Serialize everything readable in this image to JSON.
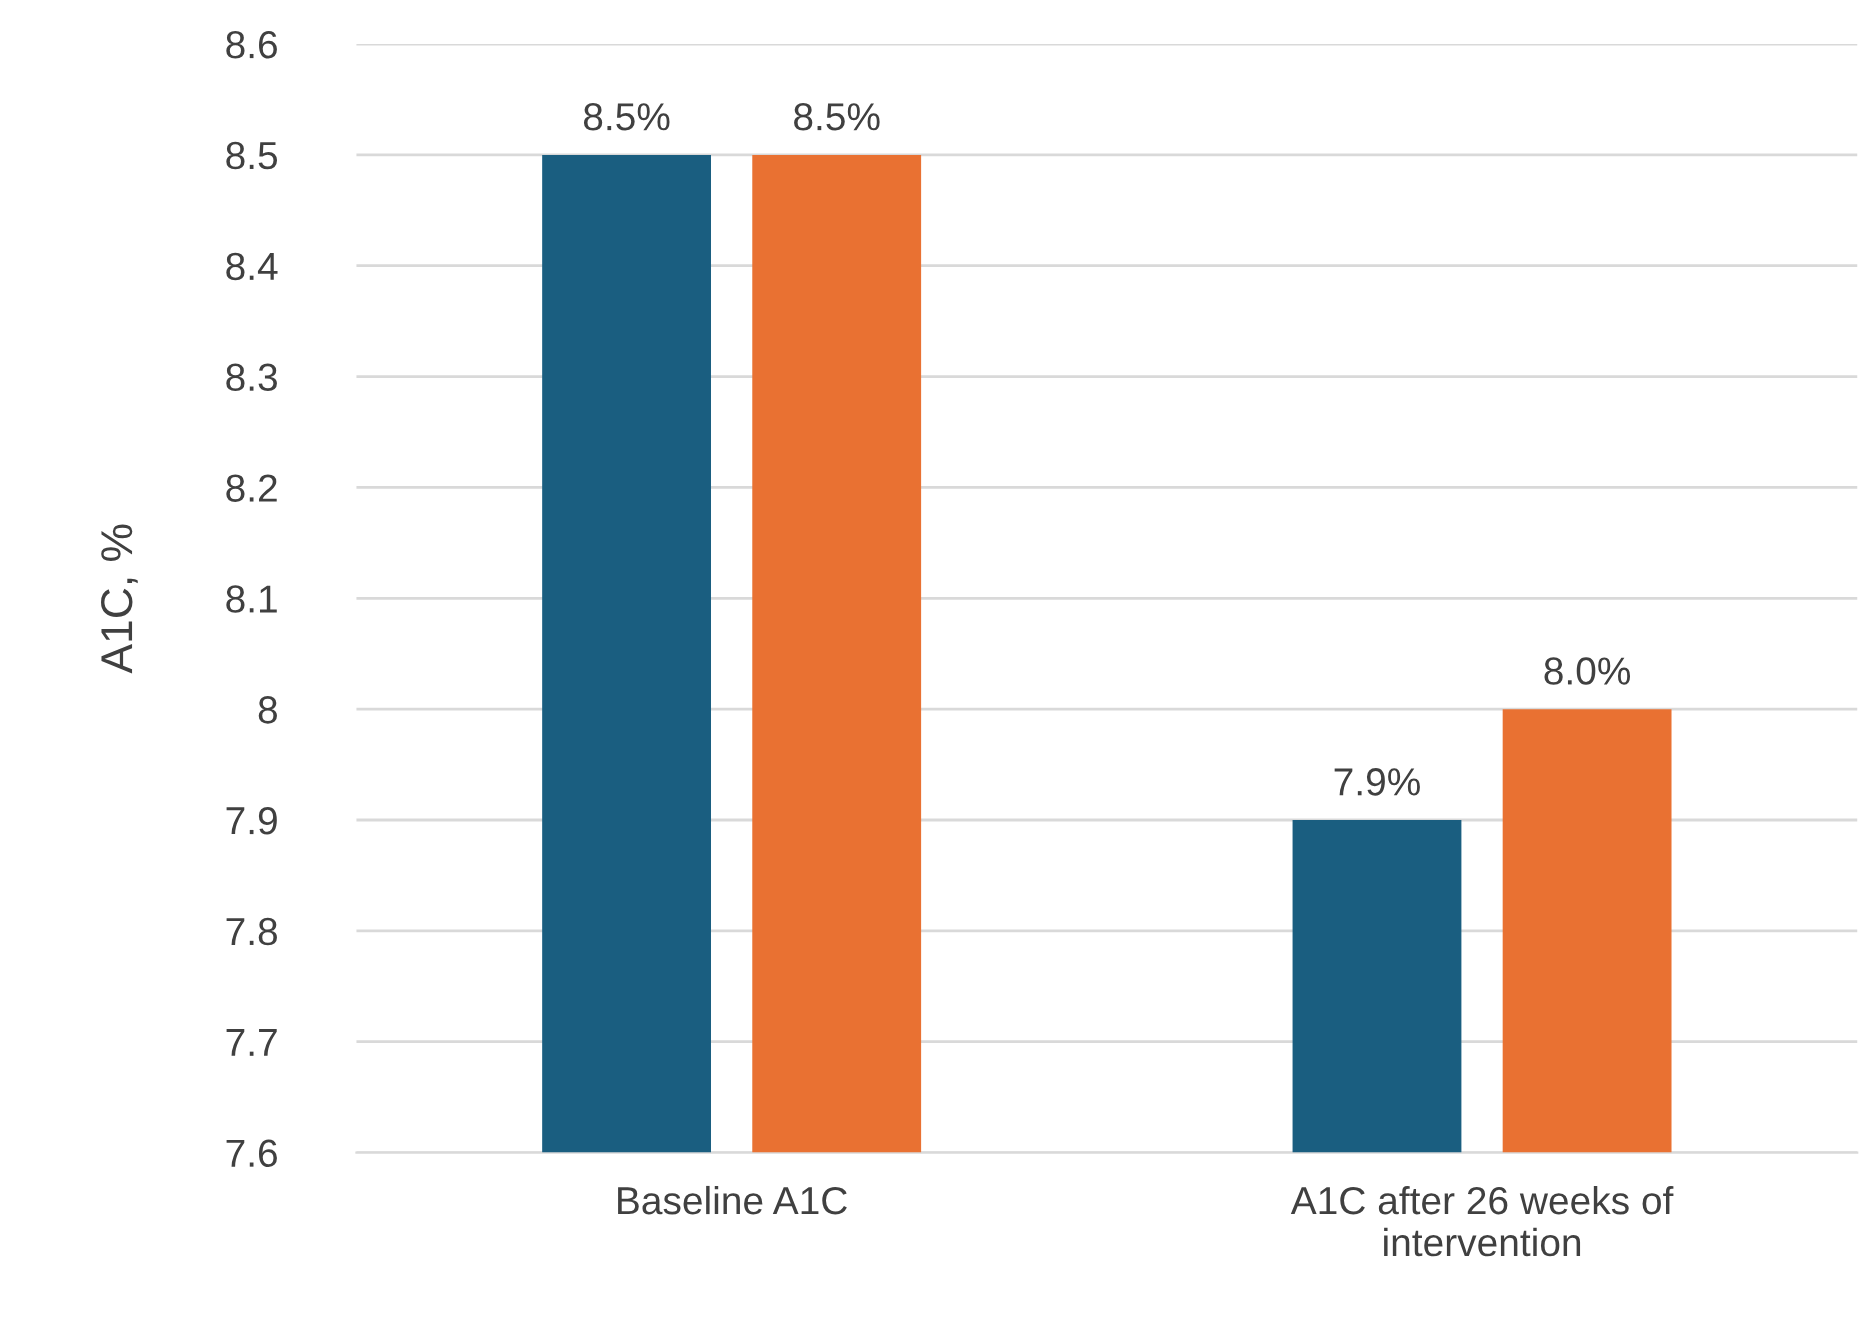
{
  "chart_data": {
    "type": "bar",
    "ylabel": "A1C, %",
    "categories": [
      "Baseline A1C",
      "A1C after 26 weeks of\nintervention"
    ],
    "series": [
      {
        "color": "#1a5e80",
        "values": [
          8.5,
          7.9
        ],
        "value_labels": [
          "8.5%",
          "7.9%"
        ]
      },
      {
        "color": "#e97132",
        "values": [
          8.5,
          8.0
        ],
        "value_labels": [
          "8.5%",
          "8.0%"
        ]
      }
    ],
    "ylim": [
      7.6,
      8.6
    ],
    "yticks": [
      7.6,
      7.7,
      7.8,
      7.9,
      8,
      8.1,
      8.2,
      8.3,
      8.4,
      8.5,
      8.6
    ],
    "grid": "y",
    "legend": false
  }
}
